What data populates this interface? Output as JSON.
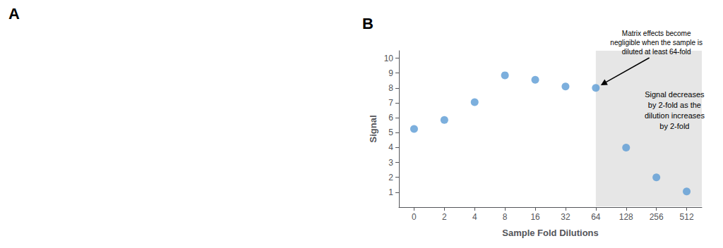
{
  "chart_data": {
    "type": "scatter",
    "panel_labels": [
      "A",
      "B"
    ],
    "xlabel": "Sample Fold Dilutions",
    "ylabel": "Signal",
    "categories": [
      "0",
      "2",
      "4",
      "8",
      "16",
      "32",
      "64",
      "128",
      "256",
      "512"
    ],
    "values": [
      5.25,
      5.85,
      7.05,
      8.85,
      8.55,
      8.1,
      8.0,
      4.0,
      2.0,
      1.05
    ],
    "color": "#5B9BD5",
    "ylim": [
      0,
      10.5
    ],
    "yticks": [
      1,
      2,
      3,
      4,
      5,
      6,
      7,
      8,
      9,
      10
    ],
    "grid": false,
    "shaded_region": {
      "from": "64",
      "color": "#e6e6e6"
    },
    "annotations": [
      {
        "text": "Matrix effects become\nnegligible when the sample is\ndiluted at least 64-fold",
        "x": "64",
        "y": 8.0
      },
      {
        "text": "Signal decreases\nby 2-fold as the\ndilution increases\nby 2-fold"
      }
    ]
  }
}
